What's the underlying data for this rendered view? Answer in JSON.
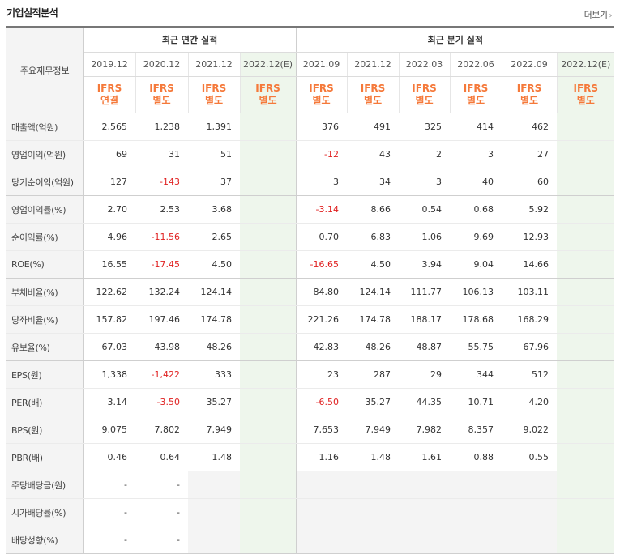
{
  "section_title": "기업실적분석",
  "more_label": "더보기",
  "row_header": "주요재무정보",
  "annual_group": "최근 연간 실적",
  "quarter_group": "최근 분기 실적",
  "columns": [
    "2019.12",
    "2020.12",
    "2021.12",
    "2022.12(E)",
    "2021.09",
    "2021.12",
    "2022.03",
    "2022.06",
    "2022.09",
    "2022.12(E)"
  ],
  "accounting": [
    [
      "IFRS",
      "연결"
    ],
    [
      "IFRS",
      "별도"
    ],
    [
      "IFRS",
      "별도"
    ],
    [
      "IFRS",
      "별도"
    ],
    [
      "IFRS",
      "별도"
    ],
    [
      "IFRS",
      "별도"
    ],
    [
      "IFRS",
      "별도"
    ],
    [
      "IFRS",
      "별도"
    ],
    [
      "IFRS",
      "별도"
    ],
    [
      "IFRS",
      "별도"
    ]
  ],
  "colors": {
    "accent": "#f5793a",
    "negative": "#e02020",
    "estimate_bg": "#eef6ec"
  },
  "rows": [
    {
      "label": "매출액(억원)",
      "values": [
        "2,565",
        "1,238",
        "1,391",
        "",
        "376",
        "491",
        "325",
        "414",
        "462",
        ""
      ]
    },
    {
      "label": "영업이익(억원)",
      "values": [
        "69",
        "31",
        "51",
        "",
        "-12",
        "43",
        "2",
        "3",
        "27",
        ""
      ]
    },
    {
      "label": "당기순이익(억원)",
      "values": [
        "127",
        "-143",
        "37",
        "",
        "3",
        "34",
        "3",
        "40",
        "60",
        ""
      ]
    },
    {
      "label": "영업이익률(%)",
      "values": [
        "2.70",
        "2.53",
        "3.68",
        "",
        "-3.14",
        "8.66",
        "0.54",
        "0.68",
        "5.92",
        ""
      ]
    },
    {
      "label": "순이익률(%)",
      "values": [
        "4.96",
        "-11.56",
        "2.65",
        "",
        "0.70",
        "6.83",
        "1.06",
        "9.69",
        "12.93",
        ""
      ]
    },
    {
      "label": "ROE(%)",
      "values": [
        "16.55",
        "-17.45",
        "4.50",
        "",
        "-16.65",
        "4.50",
        "3.94",
        "9.04",
        "14.66",
        ""
      ]
    },
    {
      "label": "부채비율(%)",
      "values": [
        "122.62",
        "132.24",
        "124.14",
        "",
        "84.80",
        "124.14",
        "111.77",
        "106.13",
        "103.11",
        ""
      ]
    },
    {
      "label": "당좌비율(%)",
      "values": [
        "157.82",
        "197.46",
        "174.78",
        "",
        "221.26",
        "174.78",
        "188.17",
        "178.68",
        "168.29",
        ""
      ]
    },
    {
      "label": "유보율(%)",
      "values": [
        "67.03",
        "43.98",
        "48.26",
        "",
        "42.83",
        "48.26",
        "48.87",
        "55.75",
        "67.96",
        ""
      ]
    },
    {
      "label": "EPS(원)",
      "values": [
        "1,338",
        "-1,422",
        "333",
        "",
        "23",
        "287",
        "29",
        "344",
        "512",
        ""
      ]
    },
    {
      "label": "PER(배)",
      "values": [
        "3.14",
        "-3.50",
        "35.27",
        "",
        "-6.50",
        "35.27",
        "44.35",
        "10.71",
        "4.20",
        ""
      ]
    },
    {
      "label": "BPS(원)",
      "values": [
        "9,075",
        "7,802",
        "7,949",
        "",
        "7,653",
        "7,949",
        "7,982",
        "8,357",
        "9,022",
        ""
      ]
    },
    {
      "label": "PBR(배)",
      "values": [
        "0.46",
        "0.64",
        "1.48",
        "",
        "1.16",
        "1.48",
        "1.61",
        "0.88",
        "0.55",
        ""
      ]
    },
    {
      "label": "주당배당금(원)",
      "values": [
        "-",
        "-",
        "",
        "",
        "",
        "",
        "",
        "",
        "",
        ""
      ]
    },
    {
      "label": "시가배당률(%)",
      "values": [
        "-",
        "-",
        "",
        "",
        "",
        "",
        "",
        "",
        "",
        ""
      ]
    },
    {
      "label": "배당성향(%)",
      "values": [
        "-",
        "-",
        "",
        "",
        "",
        "",
        "",
        "",
        "",
        ""
      ]
    }
  ]
}
